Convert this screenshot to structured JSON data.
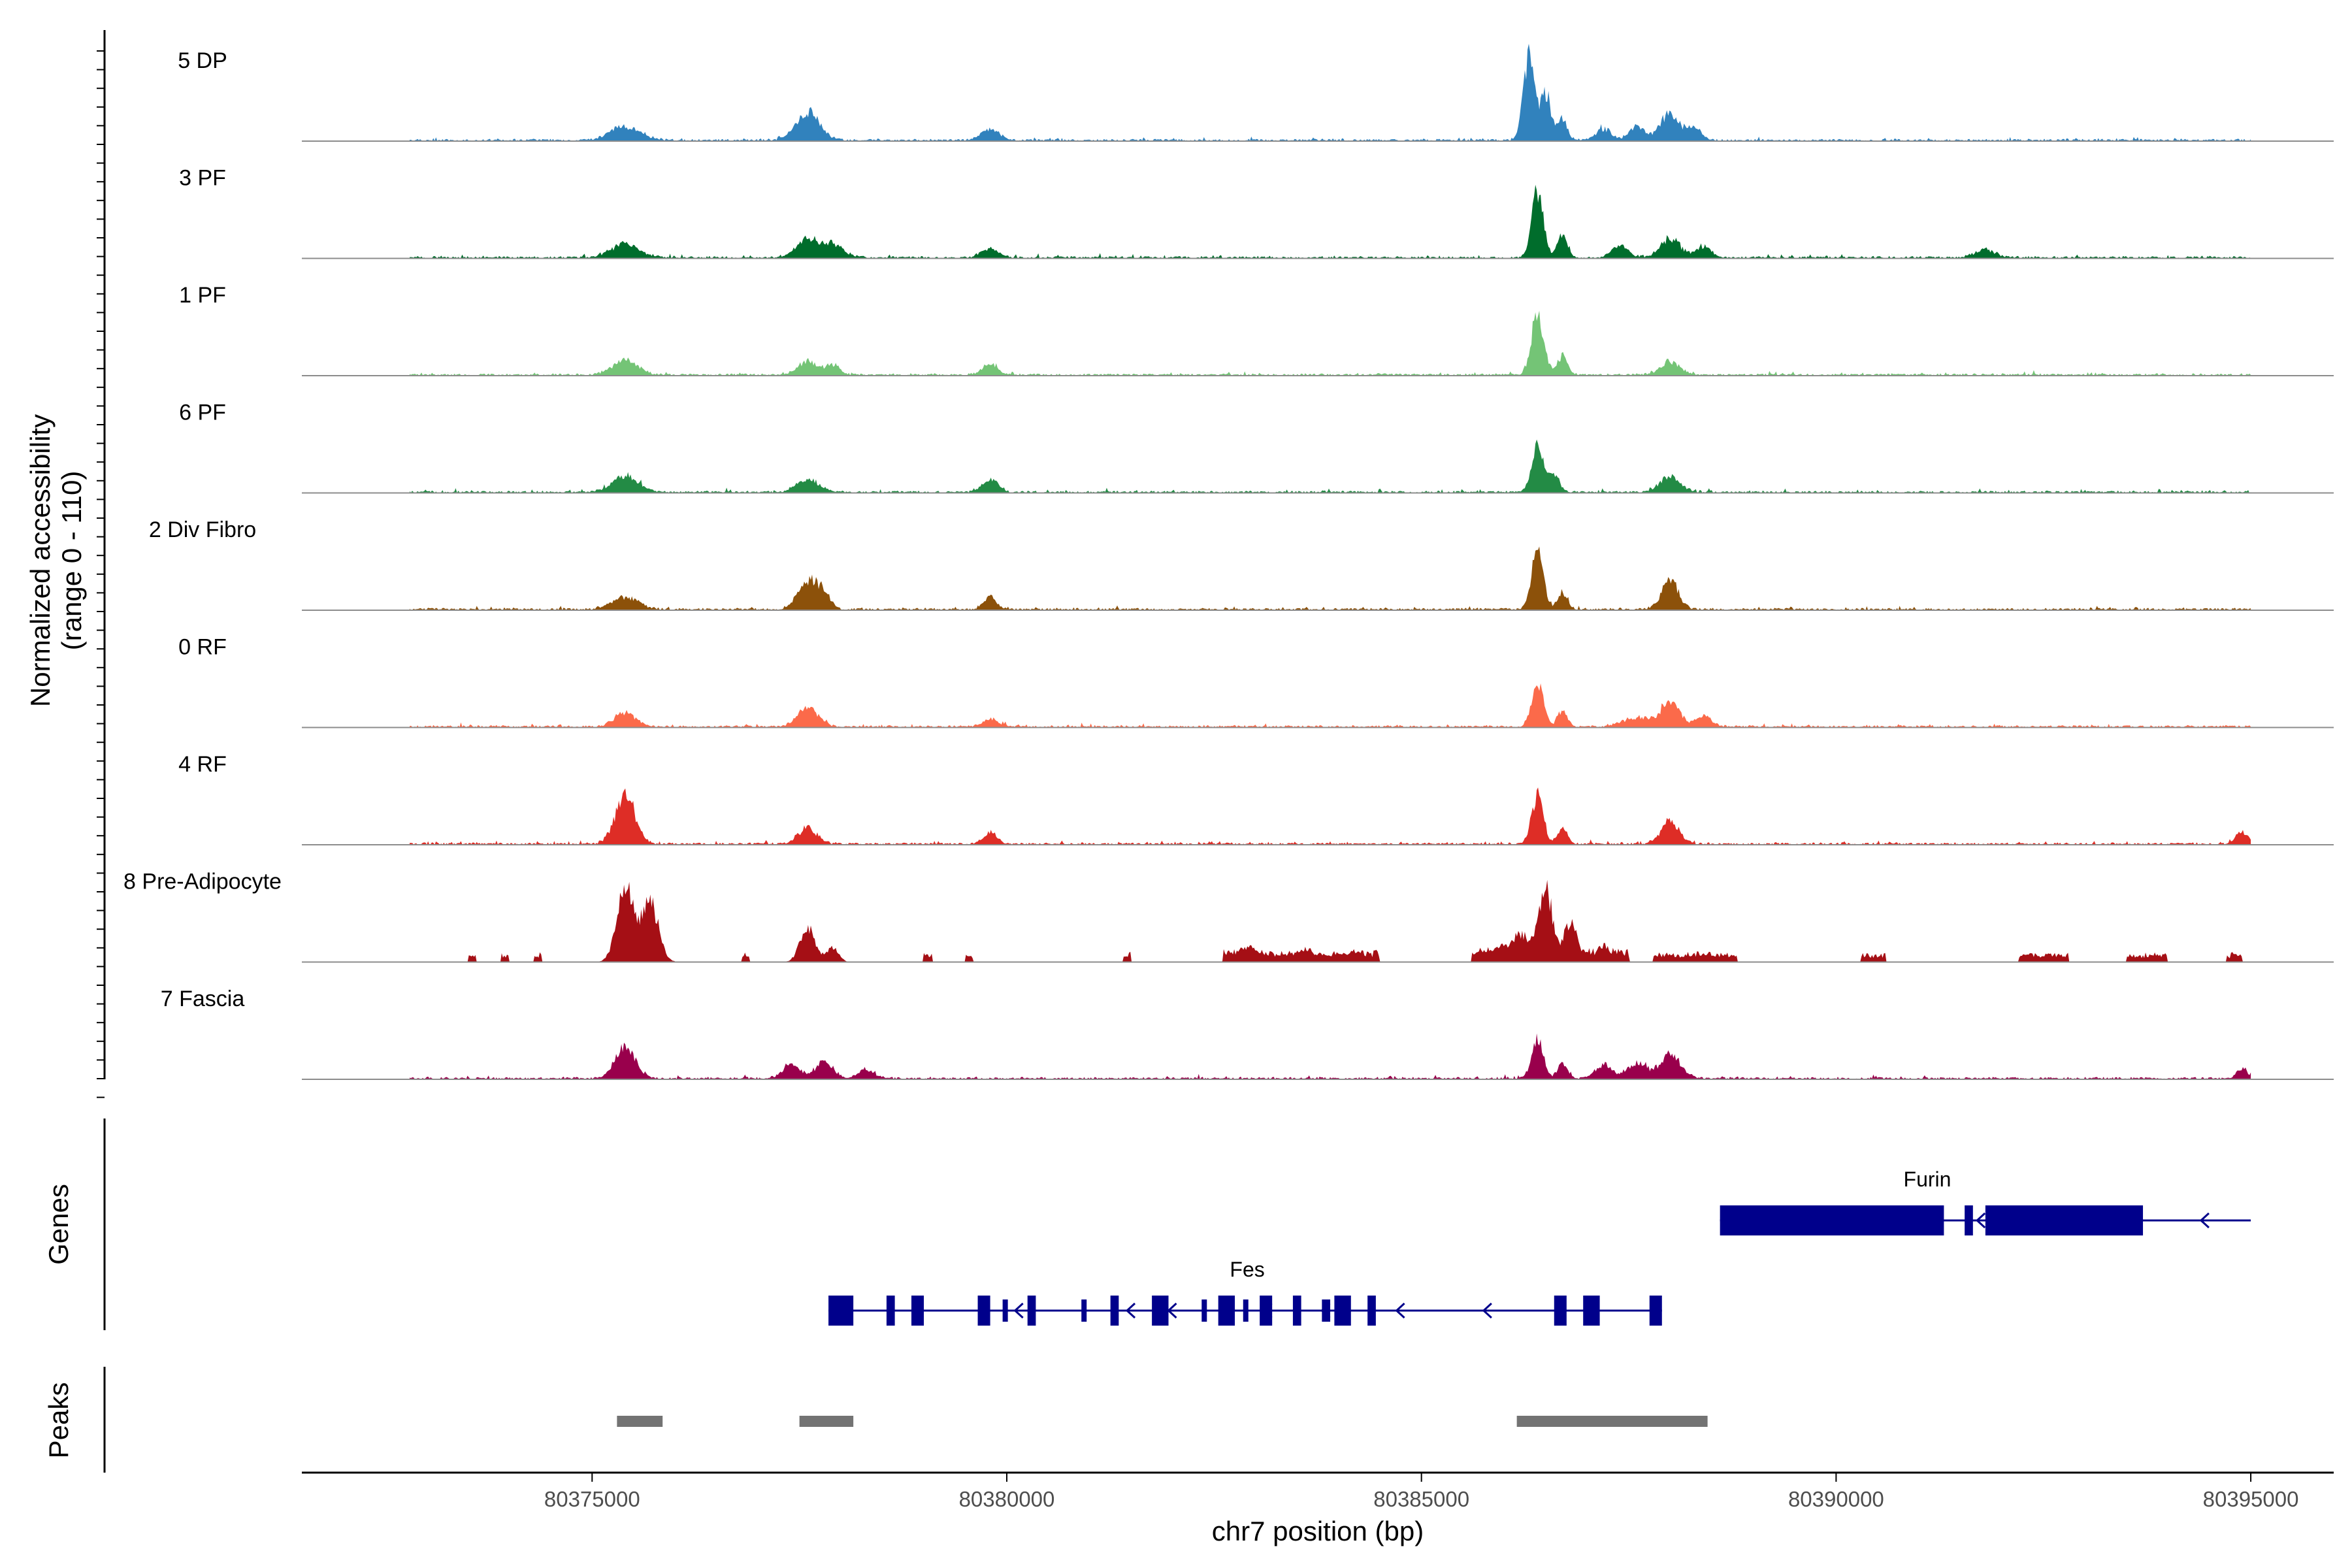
{
  "chart_data": {
    "type": "area",
    "title": "",
    "chromosome": "chr7",
    "x_range": [
      80371500,
      80396000
    ],
    "xlabel": "chr7 position (bp)",
    "x_ticks": [
      80375000,
      80380000,
      80385000,
      80390000,
      80395000
    ],
    "x_tick_labels": [
      "80375000",
      "80380000",
      "80385000",
      "80390000",
      "80395000"
    ],
    "coverage_ylabel_line1": "Normalized accessibility",
    "coverage_ylabel_line2": "(range 0 - 110)",
    "y_range": [
      0,
      110
    ],
    "signal_extent": [
      80372800,
      80395000
    ],
    "tracks": [
      {
        "name": "5 DP",
        "color": "#3182bd",
        "peaks": [
          [
            80375400,
            14,
            180
          ],
          [
            80377600,
            30,
            140
          ],
          [
            80379800,
            12,
            110
          ],
          [
            80386300,
            85,
            70
          ],
          [
            80386500,
            50,
            60
          ],
          [
            80386700,
            22,
            60
          ],
          [
            80387200,
            12,
            90
          ],
          [
            80387600,
            14,
            90
          ],
          [
            80388000,
            28,
            120
          ],
          [
            80388300,
            12,
            80
          ]
        ]
      },
      {
        "name": "3 PF",
        "color": "#006d2c",
        "peaks": [
          [
            80375400,
            14,
            170
          ],
          [
            80377600,
            18,
            140
          ],
          [
            80377900,
            12,
            130
          ],
          [
            80379800,
            10,
            100
          ],
          [
            80386400,
            68,
            70
          ],
          [
            80386700,
            26,
            60
          ],
          [
            80387400,
            12,
            100
          ],
          [
            80388000,
            20,
            120
          ],
          [
            80388400,
            12,
            90
          ],
          [
            80391800,
            8,
            120
          ]
        ]
      },
      {
        "name": "1 PF",
        "color": "#74c476",
        "peaks": [
          [
            80375400,
            16,
            150
          ],
          [
            80377600,
            14,
            120
          ],
          [
            80377900,
            10,
            80
          ],
          [
            80379800,
            11,
            90
          ],
          [
            80386400,
            62,
            75
          ],
          [
            80386700,
            20,
            60
          ],
          [
            80388000,
            14,
            120
          ]
        ]
      },
      {
        "name": "6 PF",
        "color": "#238b45",
        "peaks": [
          [
            80375400,
            17,
            150
          ],
          [
            80377600,
            14,
            130
          ],
          [
            80379800,
            14,
            90
          ],
          [
            80386400,
            50,
            70
          ],
          [
            80386600,
            18,
            60
          ],
          [
            80388000,
            16,
            120
          ]
        ]
      },
      {
        "name": "2 Div Fibro",
        "color": "#8c510a",
        "peaks": [
          [
            80375400,
            13,
            160
          ],
          [
            80377600,
            30,
            120
          ],
          [
            80377800,
            14,
            80
          ],
          [
            80379800,
            13,
            80
          ],
          [
            80386400,
            60,
            70
          ],
          [
            80386700,
            16,
            60
          ],
          [
            80388000,
            30,
            100
          ]
        ]
      },
      {
        "name": "0 RF",
        "color": "#fb6a4a",
        "peaks": [
          [
            80375400,
            14,
            130
          ],
          [
            80377600,
            18,
            130
          ],
          [
            80379800,
            7,
            100
          ],
          [
            80386400,
            44,
            70
          ],
          [
            80386700,
            16,
            60
          ],
          [
            80387600,
            10,
            160
          ],
          [
            80388000,
            26,
            110
          ],
          [
            80388400,
            12,
            90
          ]
        ]
      },
      {
        "name": "4 RF",
        "color": "#de2d26",
        "peaks": [
          [
            80375400,
            50,
            120
          ],
          [
            80377600,
            17,
            110
          ],
          [
            80379800,
            12,
            80
          ],
          [
            80386400,
            50,
            70
          ],
          [
            80386700,
            16,
            60
          ],
          [
            80388000,
            24,
            110
          ],
          [
            80394900,
            12,
            80
          ]
        ]
      },
      {
        "name": "8 Pre-Adipocyte",
        "color": "#a50f15",
        "peaks": [
          [
            80375400,
            80,
            100
          ],
          [
            80375700,
            62,
            100
          ],
          [
            80377600,
            36,
            90
          ],
          [
            80377900,
            16,
            70
          ],
          [
            80382900,
            16,
            120
          ],
          [
            80383600,
            14,
            120
          ],
          [
            80384200,
            10,
            80
          ],
          [
            80385900,
            14,
            120
          ],
          [
            80386200,
            28,
            120
          ],
          [
            80386500,
            78,
            80
          ],
          [
            80386800,
            44,
            80
          ],
          [
            80387200,
            18,
            80
          ]
        ],
        "blocks": [
          [
            80373500,
            80373600,
            8
          ],
          [
            80373900,
            80374000,
            8
          ],
          [
            80374300,
            80374400,
            8
          ],
          [
            80375200,
            80375900,
            10
          ],
          [
            80376800,
            80376900,
            8
          ],
          [
            80379000,
            80379100,
            8
          ],
          [
            80379500,
            80379600,
            8
          ],
          [
            80381400,
            80381500,
            8
          ],
          [
            80382600,
            80384500,
            10
          ],
          [
            80385600,
            80387500,
            12
          ],
          [
            80387800,
            80388800,
            8
          ],
          [
            80390300,
            80390600,
            8
          ],
          [
            80392200,
            80392800,
            8
          ],
          [
            80393500,
            80394000,
            8
          ],
          [
            80394700,
            80394900,
            8
          ]
        ]
      },
      {
        "name": "7 Fascia",
        "color": "#99004c",
        "peaks": [
          [
            80375400,
            34,
            120
          ],
          [
            80377400,
            16,
            100
          ],
          [
            80377800,
            20,
            100
          ],
          [
            80378300,
            10,
            90
          ],
          [
            80386400,
            40,
            70
          ],
          [
            80386700,
            16,
            60
          ],
          [
            80387200,
            14,
            100
          ],
          [
            80387600,
            16,
            110
          ],
          [
            80388000,
            24,
            130
          ],
          [
            80394900,
            10,
            70
          ]
        ]
      }
    ],
    "genes_ylabel": "Genes",
    "genes": [
      {
        "name": "Furin",
        "strand": "-",
        "start": 80388600,
        "end": 80395000,
        "exons": [
          [
            80388600,
            80391300,
            "thick"
          ],
          [
            80391550,
            80391650,
            "thick"
          ],
          [
            80391800,
            80393700,
            "thick"
          ]
        ],
        "arrows": [
          80391700,
          80394400
        ]
      },
      {
        "name": "Fes",
        "strand": "-",
        "start": 80377850,
        "end": 80387900,
        "exons": [
          [
            80377850,
            80378150,
            "thick"
          ],
          [
            80378550,
            80378650,
            "thick"
          ],
          [
            80378850,
            80379000,
            "thick"
          ],
          [
            80379650,
            80379800,
            "thick"
          ],
          [
            80379950,
            80380000,
            "thin"
          ],
          [
            80380250,
            80380350,
            "thick"
          ],
          [
            80380900,
            80380950,
            "thin"
          ],
          [
            80381250,
            80381350,
            "thick"
          ],
          [
            80381750,
            80381950,
            "thick"
          ],
          [
            80382350,
            80382400,
            "thin"
          ],
          [
            80382550,
            80382750,
            "thick"
          ],
          [
            80382850,
            80382900,
            "thin"
          ],
          [
            80383050,
            80383200,
            "thick"
          ],
          [
            80383450,
            80383550,
            "thick"
          ],
          [
            80383800,
            80383900,
            "thin"
          ],
          [
            80383950,
            80384150,
            "thick"
          ],
          [
            80384350,
            80384450,
            "thick"
          ],
          [
            80386600,
            80386750,
            "thick"
          ],
          [
            80386950,
            80387150,
            "thick"
          ],
          [
            80387750,
            80387900,
            "thick"
          ]
        ],
        "arrows": [
          80380100,
          80381450,
          80381950,
          80383100,
          80383800,
          80384700,
          80385750
        ]
      }
    ],
    "peaks_ylabel": "Peaks",
    "peak_regions": [
      [
        80375300,
        80375850
      ],
      [
        80377500,
        80378150
      ],
      [
        80386150,
        80388450
      ]
    ]
  }
}
